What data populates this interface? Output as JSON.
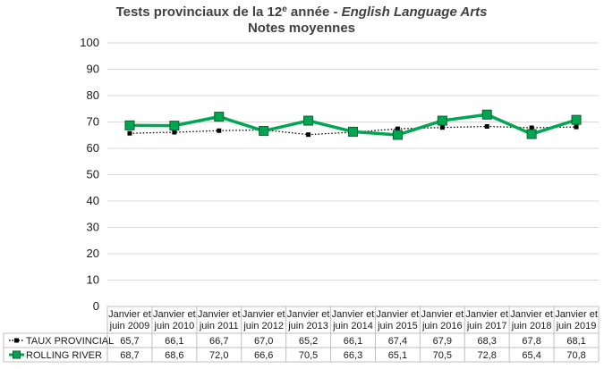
{
  "chart_data": {
    "type": "line",
    "title": {
      "prefix": "Tests provinciaux de la 12",
      "superscript": "e",
      "middle": " année - ",
      "italic": "English Language Arts"
    },
    "subtitle": "Notes moyennes",
    "ylim": [
      0,
      100
    ],
    "yticks": [
      "0",
      "10",
      "20",
      "30",
      "40",
      "50",
      "60",
      "70",
      "80",
      "90",
      "100"
    ],
    "grid": true,
    "legend": "data-table-below",
    "categories": [
      [
        "Janvier et",
        "juin 2009"
      ],
      [
        "Janvier et",
        "juin 2010"
      ],
      [
        "Janvier et",
        "juin 2011"
      ],
      [
        "Janvier et",
        "juin 2012"
      ],
      [
        "Janvier et",
        "juin 2013"
      ],
      [
        "Janvier et",
        "juin 2014"
      ],
      [
        "Janvier et",
        "juin 2015"
      ],
      [
        "Janvier et",
        "juin 2016"
      ],
      [
        "Janvier et",
        "juin 2017"
      ],
      [
        "Janvier et",
        "juin 2018"
      ],
      [
        "Janvier et",
        "juin 2019"
      ]
    ],
    "series": [
      {
        "name": "TAUX PROVINCIAL",
        "values": [
          65.7,
          66.1,
          66.7,
          67.0,
          65.2,
          66.1,
          67.4,
          67.9,
          68.3,
          67.8,
          68.1
        ],
        "labels": [
          "65,7",
          "66,1",
          "66,7",
          "67,0",
          "65,2",
          "66,1",
          "67,4",
          "67,9",
          "68,3",
          "67,8",
          "68,1"
        ],
        "color": "#000000",
        "style": "dotted",
        "marker": "square-small"
      },
      {
        "name": "ROLLING RIVER",
        "values": [
          68.7,
          68.6,
          72.0,
          66.6,
          70.5,
          66.3,
          65.1,
          70.5,
          72.8,
          65.4,
          70.8
        ],
        "labels": [
          "68,7",
          "68,6",
          "72,0",
          "66,6",
          "70,5",
          "66,3",
          "65,1",
          "70,5",
          "72,8",
          "65,4",
          "70,8"
        ],
        "color": "#00a651",
        "style": "solid",
        "marker": "square-large"
      }
    ]
  }
}
